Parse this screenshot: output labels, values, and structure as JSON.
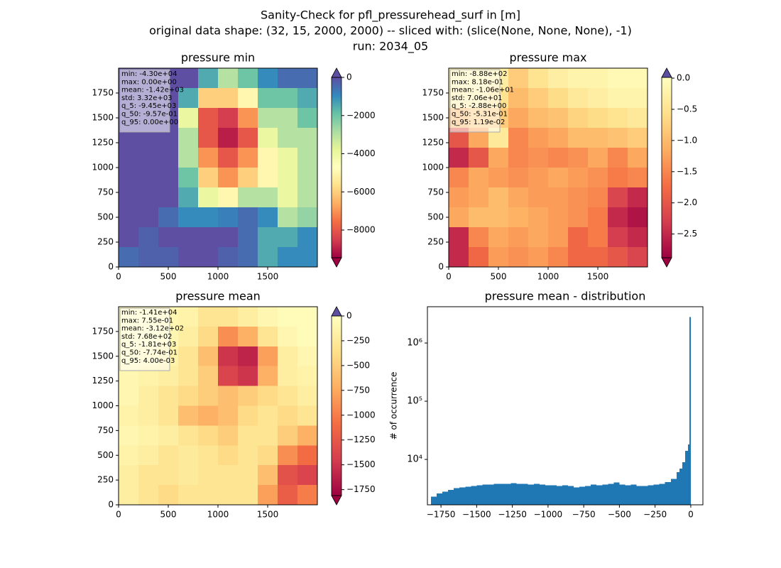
{
  "suptitle": [
    "Sanity-Check for pfl_pressurehead_surf in [m]",
    "original data shape: (32, 15, 2000, 2000) -- sliced with: (slice(None, None, None), -1)",
    "run: 2034_05"
  ],
  "chart_data": [
    {
      "type": "heatmap",
      "title": "pressure min",
      "xlim": [
        0,
        2000
      ],
      "ylim": [
        0,
        2000
      ],
      "xticks": [
        0,
        500,
        1000,
        1500
      ],
      "yticks": [
        0,
        250,
        500,
        750,
        1000,
        1250,
        1500,
        1750
      ],
      "clim": [
        -9450,
        0
      ],
      "cbar_ticks": [
        {
          "value": 0,
          "label": "0"
        },
        {
          "value": -2000,
          "label": "−2000"
        },
        {
          "value": -4000,
          "label": "−4000"
        },
        {
          "value": -6000,
          "label": "−6000"
        },
        {
          "value": -8000,
          "label": "−8000"
        }
      ],
      "colormap": [
        "#9e0142",
        "#d53e4f",
        "#f46d43",
        "#fdae61",
        "#fee08b",
        "#ffffbf",
        "#e6f598",
        "#abdda4",
        "#66c2a5",
        "#3288bd",
        "#5e4fa2"
      ],
      "extend_colors": [
        "#9e0142",
        "#5e4fa2"
      ],
      "stats": [
        "min: -4.30e+04",
        "max: 0.00e+00",
        "mean: -1.42e+03",
        "std: 3.32e+03",
        "q_5: -9.45e+03",
        "q_50: -9.57e-01",
        "q_95: 0.00e+00"
      ],
      "z": [
        [
          0,
          0,
          0,
          0,
          -1500,
          -3000,
          -2000,
          -1000,
          -500,
          -500
        ],
        [
          0,
          0,
          0,
          -1500,
          -6000,
          -6000,
          -5000,
          -2000,
          -2000,
          -1500
        ],
        [
          0,
          0,
          0,
          -4000,
          -8000,
          -8500,
          -7000,
          -3000,
          -3000,
          -2000
        ],
        [
          0,
          0,
          0,
          -3000,
          -8000,
          -9000,
          -8000,
          -4000,
          -3000,
          -3000
        ],
        [
          0,
          0,
          0,
          -3000,
          -7000,
          -8000,
          -7000,
          -5000,
          -4000,
          -3000
        ],
        [
          0,
          0,
          0,
          -2000,
          -6000,
          -7000,
          -6000,
          -5000,
          -4000,
          -3000
        ],
        [
          0,
          0,
          0,
          -1500,
          -4000,
          -5000,
          -3000,
          -3000,
          -4000,
          -3000
        ],
        [
          0,
          0,
          -500,
          -1000,
          -1000,
          -800,
          -500,
          -1000,
          -3000,
          -2500
        ],
        [
          0,
          -300,
          0,
          0,
          0,
          0,
          -500,
          -1500,
          -1500,
          -1000
        ],
        [
          -500,
          -300,
          -300,
          0,
          0,
          -300,
          -500,
          -1500,
          -1000,
          -1000
        ]
      ]
    },
    {
      "type": "heatmap",
      "title": "pressure max",
      "xlim": [
        0,
        2000
      ],
      "ylim": [
        0,
        2000
      ],
      "xticks": [
        0,
        500,
        1000,
        1500
      ],
      "yticks": [
        0,
        250,
        500,
        750,
        1000,
        1250,
        1500,
        1750
      ],
      "clim": [
        -2.88,
        0.0119
      ],
      "cbar_ticks": [
        {
          "value": 0,
          "label": "0.0"
        },
        {
          "value": -0.5,
          "label": "−0.5"
        },
        {
          "value": -1,
          "label": "−1.0"
        },
        {
          "value": -1.5,
          "label": "−1.5"
        },
        {
          "value": -2,
          "label": "−2.0"
        },
        {
          "value": -2.5,
          "label": "−2.5"
        }
      ],
      "colormap": [
        "#9e0142",
        "#d53e4f",
        "#f46d43",
        "#fdae61",
        "#fee08b",
        "#ffffbf"
      ],
      "extend_colors": [
        "#9e0142",
        "#5e4fa2"
      ],
      "stats": [
        "min: -8.88e+02",
        "max: 8.18e-01",
        "mean: -1.06e+01",
        "std: 7.06e+01",
        "q_5: -2.88e+00",
        "q_50: -5.31e-01",
        "q_95: 1.19e-02"
      ],
      "z": [
        [
          -0.2,
          -0.2,
          -0.3,
          -0.8,
          -0.5,
          -0.3,
          -0.2,
          -0.2,
          -0.1,
          -0.1
        ],
        [
          -0.3,
          -0.3,
          -0.5,
          -1.0,
          -0.8,
          -0.6,
          -0.4,
          -0.3,
          -0.2,
          -0.2
        ],
        [
          -1.0,
          -0.8,
          -0.8,
          -1.2,
          -1.0,
          -0.9,
          -0.7,
          -0.6,
          -0.5,
          -0.4
        ],
        [
          -2.0,
          -1.2,
          -0.4,
          -1.5,
          -1.3,
          -1.2,
          -1.0,
          -1.0,
          -0.9,
          -0.8
        ],
        [
          -2.5,
          -2.0,
          -1.2,
          -1.5,
          -1.4,
          -1.5,
          -1.4,
          -1.2,
          -1.5,
          -1.2
        ],
        [
          -1.5,
          -1.2,
          -1.3,
          -1.4,
          -1.3,
          -1.2,
          -1.3,
          -1.4,
          -1.6,
          -1.5
        ],
        [
          -1.3,
          -1.2,
          -1.0,
          -1.2,
          -1.3,
          -1.3,
          -1.4,
          -1.5,
          -2.2,
          -2.5
        ],
        [
          -1.2,
          -1.0,
          -1.0,
          -1.1,
          -1.2,
          -1.3,
          -1.4,
          -1.6,
          -2.5,
          -2.7
        ],
        [
          -2.5,
          -1.5,
          -1.2,
          -1.3,
          -1.2,
          -1.3,
          -1.8,
          -1.6,
          -2.3,
          -2.5
        ],
        [
          -2.5,
          -1.8,
          -1.3,
          -1.4,
          -1.3,
          -1.5,
          -1.8,
          -1.8,
          -2.0,
          -2.2
        ]
      ]
    },
    {
      "type": "heatmap",
      "title": "pressure mean",
      "xlim": [
        0,
        2000
      ],
      "ylim": [
        0,
        2000
      ],
      "xticks": [
        0,
        500,
        1000,
        1500
      ],
      "yticks": [
        0,
        250,
        500,
        750,
        1000,
        1250,
        1500,
        1750
      ],
      "clim": [
        -1810,
        0.004
      ],
      "cbar_ticks": [
        {
          "value": 0,
          "label": "0"
        },
        {
          "value": -250,
          "label": "−250"
        },
        {
          "value": -500,
          "label": "−500"
        },
        {
          "value": -750,
          "label": "−750"
        },
        {
          "value": -1000,
          "label": "−1000"
        },
        {
          "value": -1250,
          "label": "−1250"
        },
        {
          "value": -1500,
          "label": "−1500"
        },
        {
          "value": -1750,
          "label": "−1750"
        }
      ],
      "colormap": [
        "#9e0142",
        "#d53e4f",
        "#f46d43",
        "#fdae61",
        "#fee08b",
        "#ffffbf"
      ],
      "extend_colors": [
        "#9e0142",
        "#5e4fa2"
      ],
      "stats": [
        "min: -1.41e+04",
        "max: 7.55e-01",
        "mean: -3.12e+02",
        "std: 7.68e+02",
        "q_5: -1.81e+03",
        "q_50: -7.74e-01",
        "q_95: 4.00e-03"
      ],
      "z": [
        [
          -50,
          -50,
          -100,
          -150,
          -300,
          -300,
          -200,
          -100,
          -50,
          -50
        ],
        [
          -50,
          -50,
          -100,
          -200,
          -400,
          -900,
          -700,
          -300,
          -100,
          -50
        ],
        [
          -50,
          -100,
          -150,
          -300,
          -600,
          -1500,
          -1600,
          -800,
          -200,
          -100
        ],
        [
          -100,
          -150,
          -200,
          -300,
          -500,
          -1400,
          -1500,
          -700,
          -200,
          -150
        ],
        [
          -100,
          -200,
          -300,
          -400,
          -500,
          -600,
          -500,
          -400,
          -300,
          -200
        ],
        [
          -150,
          -200,
          -300,
          -600,
          -700,
          -600,
          -400,
          -300,
          -400,
          -300
        ],
        [
          -100,
          -150,
          -200,
          -300,
          -400,
          -500,
          -300,
          -300,
          -500,
          -700
        ],
        [
          -150,
          -200,
          -300,
          -250,
          -300,
          -400,
          -300,
          -400,
          -900,
          -1100
        ],
        [
          -200,
          -300,
          -300,
          -250,
          -300,
          -300,
          -300,
          -600,
          -1300,
          -1400
        ],
        [
          -200,
          -300,
          -400,
          -300,
          -300,
          -300,
          -300,
          -800,
          -1200,
          -1000
        ]
      ]
    },
    {
      "type": "histogram",
      "title": "pressure mean - distribution",
      "ylabel": "# of occurrence",
      "color": "#1f77b4",
      "log": true,
      "xlim": [
        -1845,
        85
      ],
      "ylim": [
        1660,
        4200000
      ],
      "xticks": [
        {
          "value": -1750,
          "label": "−1750"
        },
        {
          "value": -1500,
          "label": "−1500"
        },
        {
          "value": -1250,
          "label": "−1250"
        },
        {
          "value": -1000,
          "label": "−1000"
        },
        {
          "value": -750,
          "label": "−750"
        },
        {
          "value": -500,
          "label": "−500"
        },
        {
          "value": -250,
          "label": "−250"
        },
        0
      ],
      "yticks": [
        {
          "value": 10000,
          "label": "10⁴"
        },
        {
          "value": 100000,
          "label": "10⁵"
        },
        {
          "value": 1000000,
          "label": "10⁶"
        }
      ],
      "bins": [
        -1820,
        -1780,
        -1740,
        -1700,
        -1660,
        -1620,
        -1580,
        -1540,
        -1500,
        -1460,
        -1420,
        -1380,
        -1340,
        -1300,
        -1260,
        -1220,
        -1180,
        -1140,
        -1100,
        -1060,
        -1020,
        -980,
        -940,
        -900,
        -860,
        -820,
        -780,
        -740,
        -700,
        -660,
        -620,
        -580,
        -540,
        -500,
        -460,
        -420,
        -380,
        -340,
        -300,
        -260,
        -220,
        -180,
        -140,
        -100,
        -80,
        -60,
        -40,
        -20,
        -10,
        0
      ],
      "counts": [
        2300,
        2600,
        2800,
        3000,
        3200,
        3300,
        3400,
        3500,
        3600,
        3700,
        3700,
        3800,
        3800,
        3800,
        3900,
        3800,
        3800,
        3700,
        3800,
        3700,
        3600,
        3600,
        3500,
        3600,
        3500,
        3300,
        3400,
        3500,
        3700,
        3600,
        3700,
        3800,
        4000,
        3700,
        3600,
        3700,
        3500,
        3500,
        3600,
        3700,
        3800,
        4100,
        4600,
        6000,
        7000,
        9000,
        14000,
        18000,
        2800000
      ]
    }
  ]
}
